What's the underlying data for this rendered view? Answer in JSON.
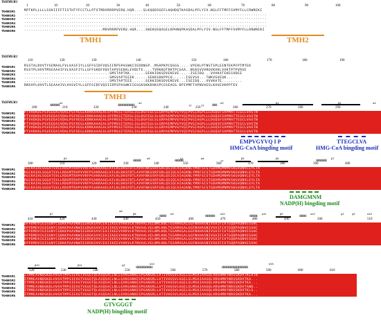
{
  "organism_label": "TkHMGR1",
  "sequence_names": [
    "TkHMGR1",
    "TkHMGR2",
    "TkHMGR3",
    "TkHMGR4",
    "TkHMGR5",
    "TkHMGR6"
  ],
  "blocks": [
    {
      "numbers": [
        "1",
        "10",
        "20",
        "30",
        "40",
        "50",
        "60",
        "70",
        "80",
        "90",
        "100"
      ],
      "structure": [],
      "rows": [
        "MPTKPLLLLLSSKIIFFTISTHTYFCCTLLPTSTMDVRRRPVERQ.HQR....SLKQQDSGEFLHQHDQTKASDALPFLYIV.NGLFFTMFFSVMYFLLCRWREKI",
        "............................................................................................................",
        "............................................................................................................",
        "............................................................................................................",
        "............................................................................................................",
        "...................................MDVRRRPVERQ.HQR....SWEKQSQAGELKPHNQPKASDALPFLYIV.NGLFFTMFFSVMYFLLRRWREKI"
      ]
    },
    {
      "numbers": [
        "110",
        "120",
        "130",
        "140",
        "150",
        "160",
        "170",
        "180",
        "190"
      ],
      "structure": [],
      "rows": [
        "RSSTALRVVTYSEMAALFVLVASFIYLLGFFGIDFVQSIIRPSPASWKIIEDDNSP..MSHPKPCQSGG.....VPEKLPTNSTSPLEENTEKPFPTMTEK",
        "RSSTPLHVVTMSEAAAIFVLVASFIYLLGFFGKDFVQSTAPVSEKKLEVDETE....TVRKKQTRKTPCGAA..NSDSVVVRQVKVKLVVKTPTPVRSE",
        "......................................SMSTAPTKK.......SEKKIDKSDVEKEVE.....ISEIDQ...VVVKATEKEGVDEE",
        "......................................SMSVAPTEEEK......SEKKSDKPPCQ......ISEVSV...TWKVSVEQK.....",
        "......................................SMSTAPTEEE......SEKKIDKSDVEKEVE...ISEIDQ...VVVKATE.........",
        "RNSVPLHVVTLSEAAAIVLVASVIYLLGFFGIDFVQSIIRPSPASWKIIEGGKSKKDHKSPCGSEAGS.DPIPMFTAPNVAESLKAVEVKPPTEV"
      ]
    },
    {
      "numbers": [
        "200",
        "210",
        "220",
        "230",
        "240",
        "250",
        "260",
        "270",
        "280",
        "290"
      ],
      "structure": [
        "α1",
        "α2",
        "TT",
        "TT",
        "α3",
        "β1",
        "β2",
        "α4"
      ],
      "rows": [
        "PTVVDKDLPSVEEDAIVDHLPSFVEGLKDRKAAAEALSPFMSSITERSLIGLDGFEGLSLGRPAEMPVGYVQIPVGIAGPLLLDGQSFSVPMATTEGCLVASTN",
        "PTVVDKDLPSVEEDAIVDHLPSFVEGLKDRKAAAEALSPFMSSITERSLIGLDGFEGLSLGRPAEMPVGYVQIPVGIAGPLLLDGQSFSVPMATTEGCLVASTN",
        "PTVVDKDLPSVEEDAIVDHLPSFVEGLKDRKAAAEALSPFMSSITERSLIGLDGFEGLSLGRPAEMPVGYVQIPVGIAGPLLLDGQSFSVPMATTEGCLVASTN",
        "PTVVDKDLPSVEEDAIVDHLPSFVEGLKDRKAAAEALSPFMSSITERSLIGLDGFEGLSLGRPAEMPVGYVQIPVGIAGPLLLDGQSFSVPMATTEGCLVASTN",
        "PTVVDKDLPSVEEDAIVDHLPSFVEGLKDRKAAAEALSPFMSSITERSLIGLDGFEGLSLGRPAEMPVGYVQIPVGIAGPLLLDGQSFSVPMATTEGCLVASTN",
        "PTVVDKDLPSVEEDAIVDHLPSFVEGLKDRKAAAEALSPFMSSITERSLIGLDGFEGLSLGRPAEMPVGYVQIPVGIAGPLLLDGQSFSVPMATTEGCLVASTN"
      ]
    },
    {
      "numbers": [
        "300",
        "310",
        "320",
        "330",
        "340",
        "350",
        "360",
        "370",
        "380",
        "390",
        "400"
      ],
      "structure": [
        "β3",
        "β4",
        "α5",
        "η1",
        "α6",
        "TT",
        "β5",
        "β6",
        "β7"
      ],
      "rows": [
        "RGCKAIHLSGGATSVLLRDGMTRAPVVRFPSAKRAAELKFLKLDKSFDTLAVVFNKSSRFGRLQSIQCAIAGKNLYMRFSCSTGDAMGMNMVSKGVQNVLEYLTA",
        "RGCKAIHLSGGATSVLLRDGMTRAPVVRFPSAKRAAELKFLKLDKSFDTLAVVFNKSSRFGRLQSIQCAIAGKNLYMRFSCSTGDAMGMNMVSKGVQNVLEYLTA",
        "RGCKAIHLSGGATSVLLRDGMTRAPVVRFPSAKRAAELKFLKLDKSFDTLAVVFNKSSRFGRLQSIQCAIAGKNLYMRFSCSTGDAMGMNMVSKGVQNVLEYLTA",
        "RGCKAIHLSGGATSVLLRDGMTRAPVVRFPSAKRAAELKFLKLDKSFDTLAVVFNKSSRFGRLQSIQCAIAGKNLYMRFSCSTGDAMGMNMVSKGVQNVLEYLTA",
        "RGCKAIHLSGGATSVLLRDGMTRAPVVRFPSAKRAAELKFLKLDKSFDTLAVVFNKSSRFGRLQSIQCAIAGKNLYMRFSCSTGDAMGMNMVSKGVQNVLEYLTA",
        "RGCKAIHLSGGATSVLLRDGMTRAPVVRFPSAKRAAELKFLKLDKSFDTLAVVFNKSSRFGRLQSIQCAIAGKNLYMRFSCSTGDAMGMNMVSKGVQNVLEYLTA"
      ]
    },
    {
      "numbers": [
        "410",
        "420",
        "430",
        "440",
        "450",
        "460",
        "470",
        "480",
        "490",
        "500",
        "510"
      ],
      "structure": [
        "β7",
        "β8",
        "α8",
        "α9",
        "α10",
        "α11",
        "β9",
        "α12",
        "η2",
        "η3",
        "α13"
      ],
      "rows": [
        "DFPDMDVIGISGNYCSDKKPAAVNWIEGRGKSVVCEAIIKEEVVKKVLKTNVAALVELNMLKNLTGSAMAGALGGFNAHASNIVSAIFIATGQDPAQNVESSHC",
        "DFPDMDVIGISGNYCSDKKPAAVNWIEGRGKSVVCEAIIKEEVVKKVLKTNVAALVELNMLKNLTGSAMAGALGGFNAHASNIVSAIFIATGQDPAQNVESSHC",
        "DFPDMDVIGISGNYCSDKKPAAVNWIEGRGKSVVCEAIIKEEVVKKVLKTNVAALVELNMLKNLTGSAMAGALGGFNAHASNIVSAIFIATGQDPAQNVESSHC",
        "DFPDMDVIGISGNYCSDKKPAAVNWIEGRGKSVVCEAIIKEEVVKKVLKTNVAALVELNMLKNLTGSAMAGALGGFNAHASNIVSAIFIATGQDPAQNVESSHC",
        "DFPDMDVIGISGNYCSDKKPAAVNWIEGRGKSVVCEAIIKEEVVKKVLKTNVAALVELNMLKNLTGSAMAGALGGFNAHASNIVSAIFIATGQDPAQNVESSHC",
        "DFPDMDVIGISGNYCSDKKPAAVNWIEGRGKSVVCEAIIKEEVVKKVLKTNVAALVELNMLKNLTGSAMAGALGGFNAHASNIVSAIFIATGQDPAQNVESSHC"
      ]
    },
    {
      "numbers": [
        "520",
        "530",
        "540",
        "550",
        "560",
        "570",
        "580",
        "590",
        "600",
        "610"
      ],
      "structure": [
        "β10",
        "β11",
        "η3",
        "α14",
        "α15"
      ],
      "rows": [
        "ITMMEAVNDGKDLHVSVTMPSIEVGTVGGGTQLASQSACLNLLGVKGANKESPGANSRLLATIVAGSVLAGELSLMSAIAAGQLVRSHMKYNRSSKDVTKLATN",
        "ITMMEAVNDGKDLHVSVTMPSIEVGTVGGGTQLASQSACLNLLGVKGANKESPGANSRLLATIVAGSVLAGELSLMSAIAAGQLVRSHMKYNRSSKDVTKA...",
        "ITMMEAVNDGKDLHVSVTMPSIEVGTVGGGTQLASQSACLNLLGVKGANKESPGANSRLLATIVAGSVLAGELSLMSAIAAGQLVRSHMKYNRSSKDVTKA...",
        "ITMMEAVNDGKDLHVSVTMPSIEVGTVGGGTQLASQSACLNLLGVKGANKESPGANSRLLATIVAGSVLAGELSLMSAIAAGQLVRSHMKYNRSSKDVTANK..",
        "ITMMEAVNDGKDLHVSVTMPSIEVGTVGGGTQLASQSACLNLLGVKGANKESPGANSRLLATIVAGSVLAGELSLMSAIAAGQLVRSHMKYNRSSKDVTKLS..",
        "ITMMEAVNDGKDLHVSVTMPSIEVGTVGGGTQLASQSACLNLLGVKGANKESPGANSRLLATIVAGSVLAGELSLMSAIAAGQLVRSHMKYNRSSKDVTKA..."
      ]
    }
  ],
  "tmh_labels": [
    "TMH1",
    "TMH2",
    "TMH3"
  ],
  "motifs": [
    {
      "sequence": "EMPVGYVQ I P",
      "label": "HMG-CoA bingding motif",
      "color": "#1c2fb3"
    },
    {
      "sequence": "TTEGCLVA",
      "label": "HMG-CoA bingding motif",
      "color": "#1c2fb3"
    },
    {
      "sequence": "DAMGMNM",
      "label": "NADP(H) bingding motif",
      "color": "#1a8a1a"
    },
    {
      "sequence": "GTVGGGT",
      "label": "NADP(H) bingding motif",
      "color": "#1a8a1a"
    }
  ],
  "colors": {
    "conserved": "#e0201c",
    "tmh": "#e08a1e",
    "hmg_motif": "#1c2fb3",
    "nadph_motif": "#1a8a1a"
  }
}
